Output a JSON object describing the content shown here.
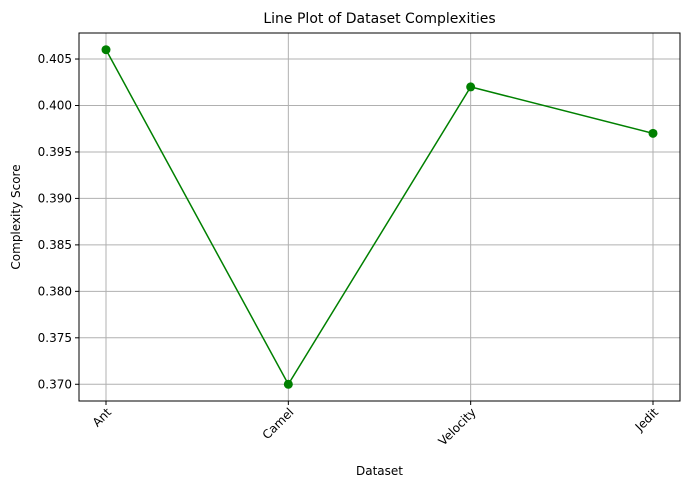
{
  "chart_data": {
    "type": "line",
    "title": "Line Plot of Dataset Complexities",
    "xlabel": "Dataset",
    "ylabel": "Complexity Score",
    "categories": [
      "Ant",
      "Camel",
      "Velocity",
      "Jedit"
    ],
    "series": [
      {
        "values": [
          0.406,
          0.37,
          0.402,
          0.397
        ],
        "color": "#008000",
        "marker": "circle"
      }
    ],
    "ylim": [
      0.3682,
      0.4078
    ],
    "yticks": [
      "0.370",
      "0.375",
      "0.380",
      "0.385",
      "0.390",
      "0.395",
      "0.400",
      "0.405"
    ],
    "grid": true,
    "xtick_rotation": 45
  }
}
